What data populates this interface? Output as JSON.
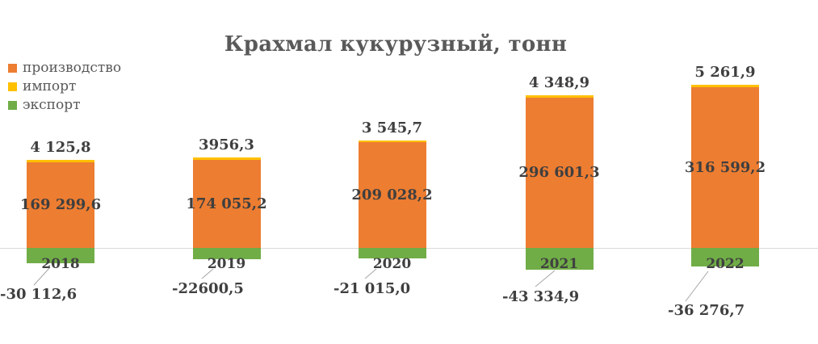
{
  "title": "Крахмал кукурузный, тонн",
  "legend": [
    {
      "label": "производство",
      "color": "#ED7D31"
    },
    {
      "label": "импорт",
      "color": "#FFC000"
    },
    {
      "label": "экспорт",
      "color": "#70AD47"
    }
  ],
  "chart_data": {
    "type": "bar",
    "stacked": true,
    "title": "Крахмал кукурузный, тонн",
    "xlabel": "",
    "ylabel": "тонн",
    "grid": false,
    "legend_position": "top-left",
    "axis_line_color": "#D9D9D9",
    "leader_line_color": "#A6A6A6",
    "label_color": "#3F3F3F",
    "categories": [
      "2018",
      "2019",
      "2020",
      "2021",
      "2022"
    ],
    "series": [
      {
        "name": "производство",
        "color": "#ED7D31",
        "values": [
          169299.6,
          174055.2,
          209028.2,
          296601.3,
          316599.2
        ],
        "labels": [
          "169 299,6",
          "174 055,2",
          "209 028,2",
          "296 601,3",
          "316 599,2"
        ],
        "label_position": "center"
      },
      {
        "name": "импорт",
        "color": "#FFC000",
        "values": [
          4125.8,
          3956.3,
          3545.7,
          4348.9,
          5261.9
        ],
        "labels": [
          "4 125,8",
          "3956,3",
          "3 545,7",
          "4 348,9",
          "5 261,9"
        ],
        "label_position": "outside-end-top"
      },
      {
        "name": "экспорт",
        "color": "#70AD47",
        "values": [
          -30112.6,
          -22600.5,
          -21015.0,
          -43334.9,
          -36276.7
        ],
        "labels": [
          "-30 112,6",
          "-22600,5",
          "-21 015,0",
          "-43 334,9",
          "-36 276,7"
        ],
        "label_position": "below-with-leader-line"
      }
    ]
  }
}
